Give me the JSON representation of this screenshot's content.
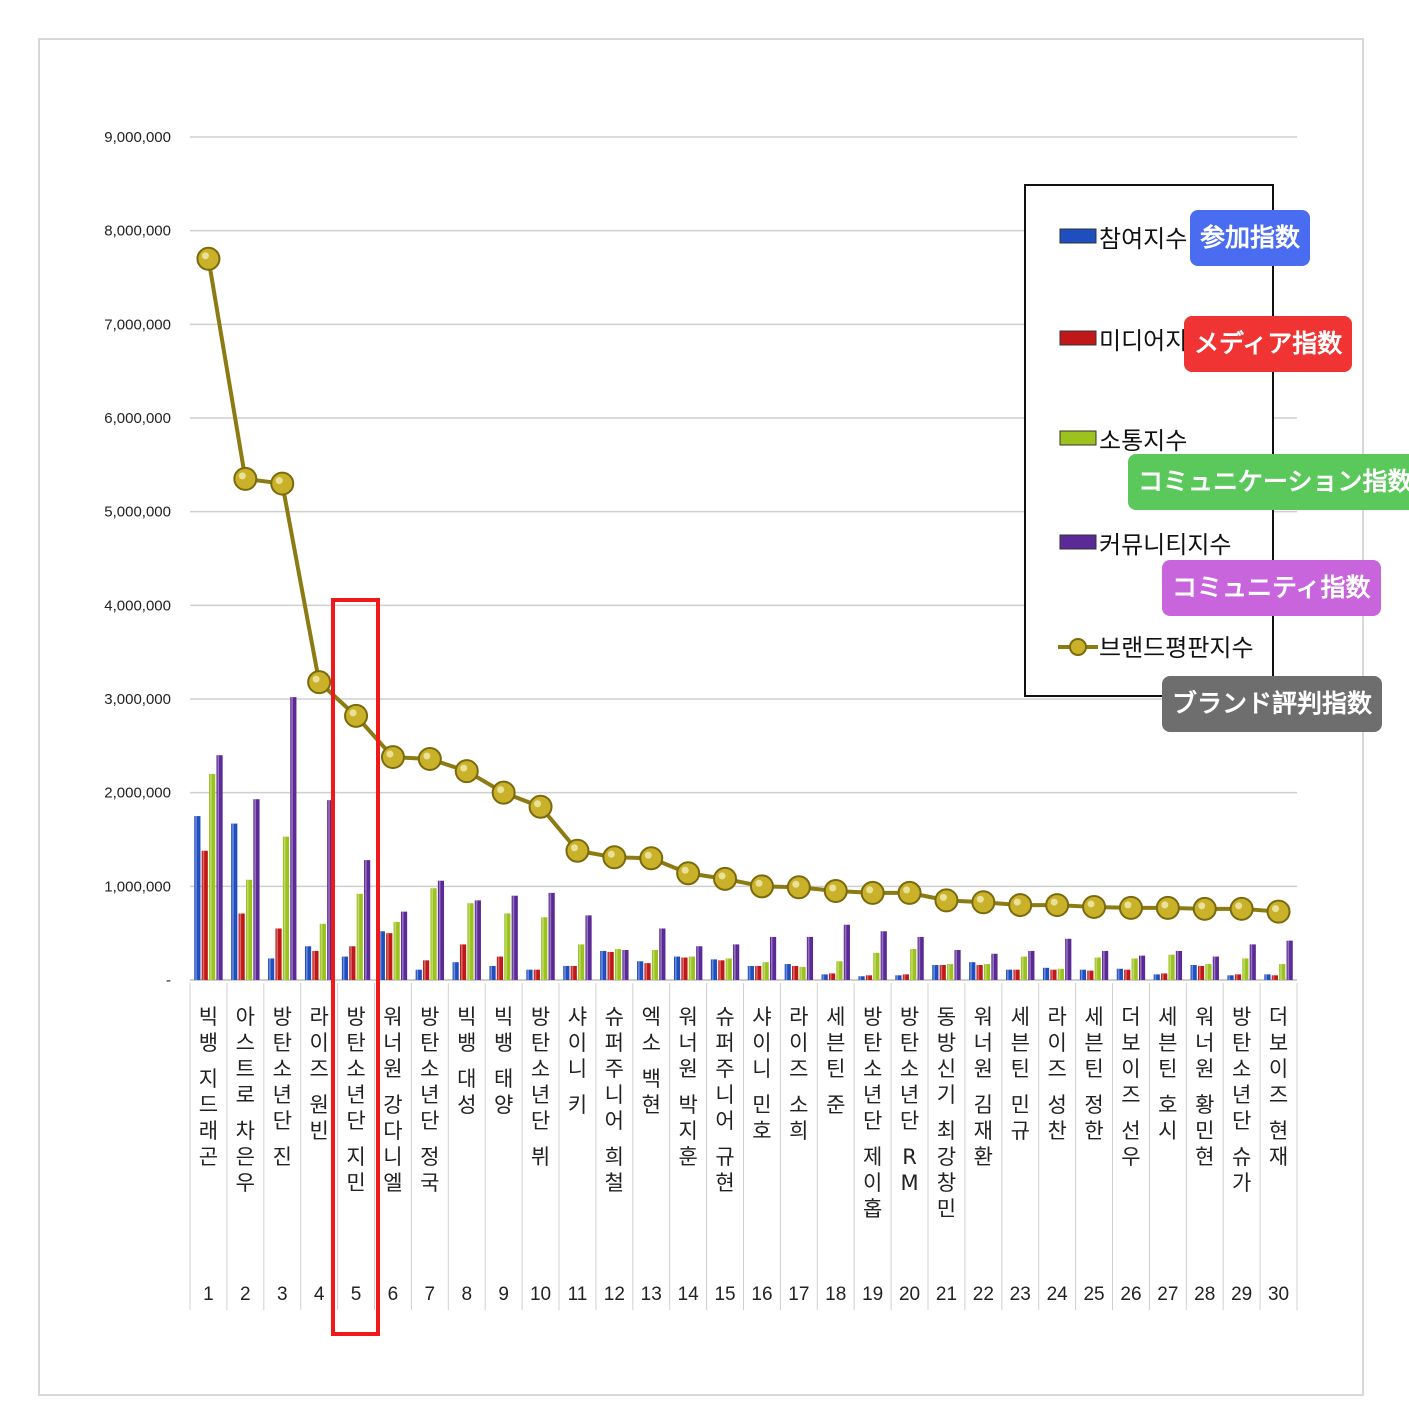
{
  "chart_data": {
    "type": "bar",
    "title": "",
    "xlabel": "",
    "ylabel": "",
    "ylim": [
      0,
      9000000
    ],
    "y_ticks": [
      {
        "value": 0,
        "label": "-"
      },
      {
        "value": 1000000,
        "label": "1,000,000"
      },
      {
        "value": 2000000,
        "label": "2,000,000"
      },
      {
        "value": 3000000,
        "label": "3,000,000"
      },
      {
        "value": 4000000,
        "label": "4,000,000"
      },
      {
        "value": 5000000,
        "label": "5,000,000"
      },
      {
        "value": 6000000,
        "label": "6,000,000"
      },
      {
        "value": 7000000,
        "label": "7,000,000"
      },
      {
        "value": 8000000,
        "label": "8,000,000"
      },
      {
        "value": 9000000,
        "label": "9,000,000"
      }
    ],
    "categories": [
      "빅뱅 지드래곤",
      "아스트로 차은우",
      "방탄소년단 진",
      "라이즈 원빈",
      "방탄소년단 지민",
      "워너원 강다니엘",
      "방탄소년단 정국",
      "빅뱅 대성",
      "빅뱅 태양",
      "방탄소년단 뷔",
      "샤이니 키",
      "슈퍼주니어 희철",
      "엑소 백현",
      "워너원 박지훈",
      "슈퍼주니어 규현",
      "샤이니 민호",
      "라이즈 소희",
      "세븐틴 준",
      "방탄소년단 제이홉",
      "방탄소년단 RM",
      "동방신기 최강창민",
      "워너원 김재환",
      "세븐틴 민규",
      "라이즈 성찬",
      "세븐틴 정한",
      "더보이즈 선우",
      "세븐틴 호시",
      "워너원 황민현",
      "방탄소년단 슈가",
      "더보이즈 현재"
    ],
    "ranks": [
      "1",
      "2",
      "3",
      "4",
      "5",
      "6",
      "7",
      "8",
      "9",
      "10",
      "11",
      "12",
      "13",
      "14",
      "15",
      "16",
      "17",
      "18",
      "19",
      "20",
      "21",
      "22",
      "23",
      "24",
      "25",
      "26",
      "27",
      "28",
      "29",
      "30"
    ],
    "series": [
      {
        "name": "참여지수",
        "kind": "bar",
        "color": "#1f4fbf",
        "values": [
          1750000,
          1670000,
          230000,
          360000,
          250000,
          520000,
          110000,
          190000,
          150000,
          110000,
          150000,
          310000,
          200000,
          250000,
          220000,
          150000,
          170000,
          60000,
          40000,
          50000,
          160000,
          190000,
          110000,
          130000,
          110000,
          120000,
          60000,
          160000,
          50000,
          60000
        ]
      },
      {
        "name": "미디어지수",
        "kind": "bar",
        "color": "#c01818",
        "values": [
          1380000,
          710000,
          550000,
          310000,
          360000,
          500000,
          210000,
          380000,
          250000,
          110000,
          150000,
          300000,
          180000,
          240000,
          210000,
          150000,
          150000,
          70000,
          50000,
          60000,
          160000,
          160000,
          110000,
          110000,
          100000,
          110000,
          70000,
          150000,
          60000,
          50000
        ]
      },
      {
        "name": "소통지수",
        "kind": "bar",
        "color": "#9cc21e",
        "values": [
          2200000,
          1070000,
          1530000,
          600000,
          920000,
          620000,
          980000,
          820000,
          710000,
          670000,
          380000,
          330000,
          320000,
          250000,
          230000,
          190000,
          140000,
          200000,
          290000,
          330000,
          170000,
          170000,
          250000,
          120000,
          240000,
          230000,
          270000,
          170000,
          230000,
          170000
        ]
      },
      {
        "name": "커뮤니티지수",
        "kind": "bar",
        "color": "#5b2a96",
        "values": [
          2400000,
          1930000,
          3020000,
          1920000,
          1280000,
          730000,
          1060000,
          850000,
          900000,
          930000,
          690000,
          320000,
          550000,
          360000,
          380000,
          460000,
          460000,
          590000,
          520000,
          460000,
          320000,
          280000,
          310000,
          440000,
          310000,
          260000,
          310000,
          250000,
          380000,
          420000
        ]
      },
      {
        "name": "브랜드평판지수",
        "kind": "line",
        "color": "#8c7a12",
        "values": [
          7700000,
          5350000,
          5300000,
          3180000,
          2820000,
          2380000,
          2360000,
          2230000,
          2000000,
          1850000,
          1380000,
          1310000,
          1300000,
          1140000,
          1080000,
          1000000,
          990000,
          950000,
          930000,
          930000,
          850000,
          830000,
          800000,
          800000,
          780000,
          770000,
          770000,
          760000,
          760000,
          730000
        ]
      }
    ],
    "highlight_rank": "5",
    "legend_position": "top-right"
  },
  "badges": [
    {
      "text": "参加指数",
      "color": "#4a6cf0"
    },
    {
      "text": "メディア指数",
      "color": "#f03434"
    },
    {
      "text": "コミュニケーション指数",
      "color": "#5ac85a"
    },
    {
      "text": "コミュニティ指数",
      "color": "#c864dc"
    },
    {
      "text": "ブランド評判指数",
      "color": "#6e6e6e"
    }
  ]
}
